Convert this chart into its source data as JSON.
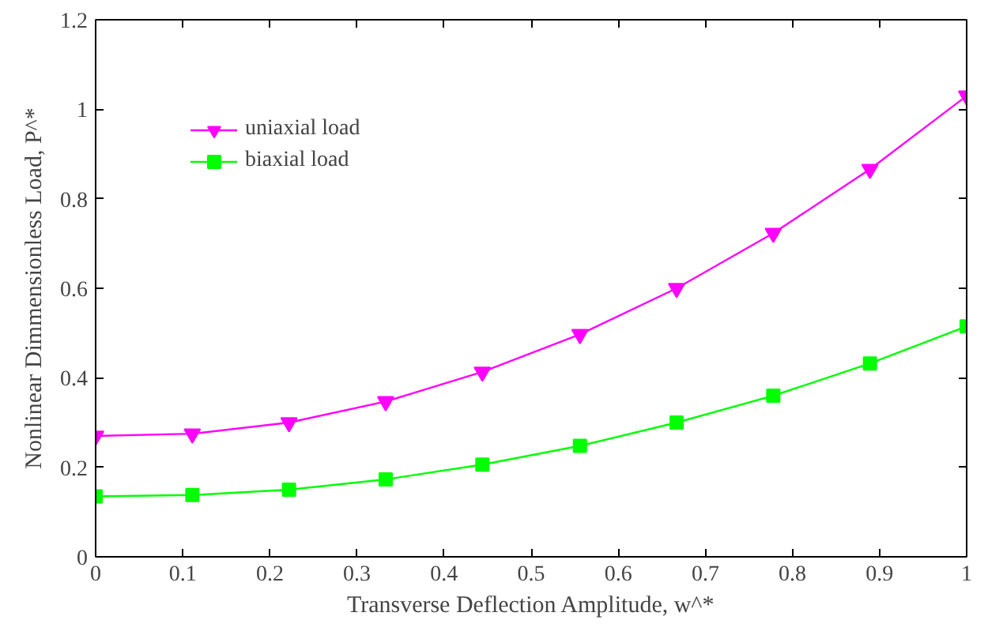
{
  "chart_data": {
    "type": "line",
    "xlabel": "Transverse Deflection Amplitude, w^*",
    "ylabel": "Nonlinear Dimmensionless Load, P^*",
    "x": [
      0,
      0.111,
      0.222,
      0.333,
      0.444,
      0.556,
      0.667,
      0.778,
      0.889,
      1
    ],
    "series": [
      {
        "name": "uniaxial load",
        "color": "#ff00ff",
        "marker": "triangle",
        "values": [
          0.27,
          0.275,
          0.3,
          0.347,
          0.413,
          0.497,
          0.6,
          0.723,
          0.866,
          1.03
        ]
      },
      {
        "name": "biaxial load",
        "color": "#00ff00",
        "marker": "square",
        "values": [
          0.135,
          0.138,
          0.15,
          0.173,
          0.206,
          0.248,
          0.3,
          0.36,
          0.432,
          0.515
        ]
      }
    ],
    "xlim": [
      0,
      1
    ],
    "ylim": [
      0,
      1.2
    ],
    "xticks": [
      0,
      0.1,
      0.2,
      0.3,
      0.4,
      0.5,
      0.6,
      0.7,
      0.8,
      0.9,
      1
    ],
    "yticks": [
      0,
      0.2,
      0.4,
      0.6,
      0.8,
      1,
      1.2
    ],
    "grid": false,
    "legend": "top left",
    "line_style": "solid"
  }
}
